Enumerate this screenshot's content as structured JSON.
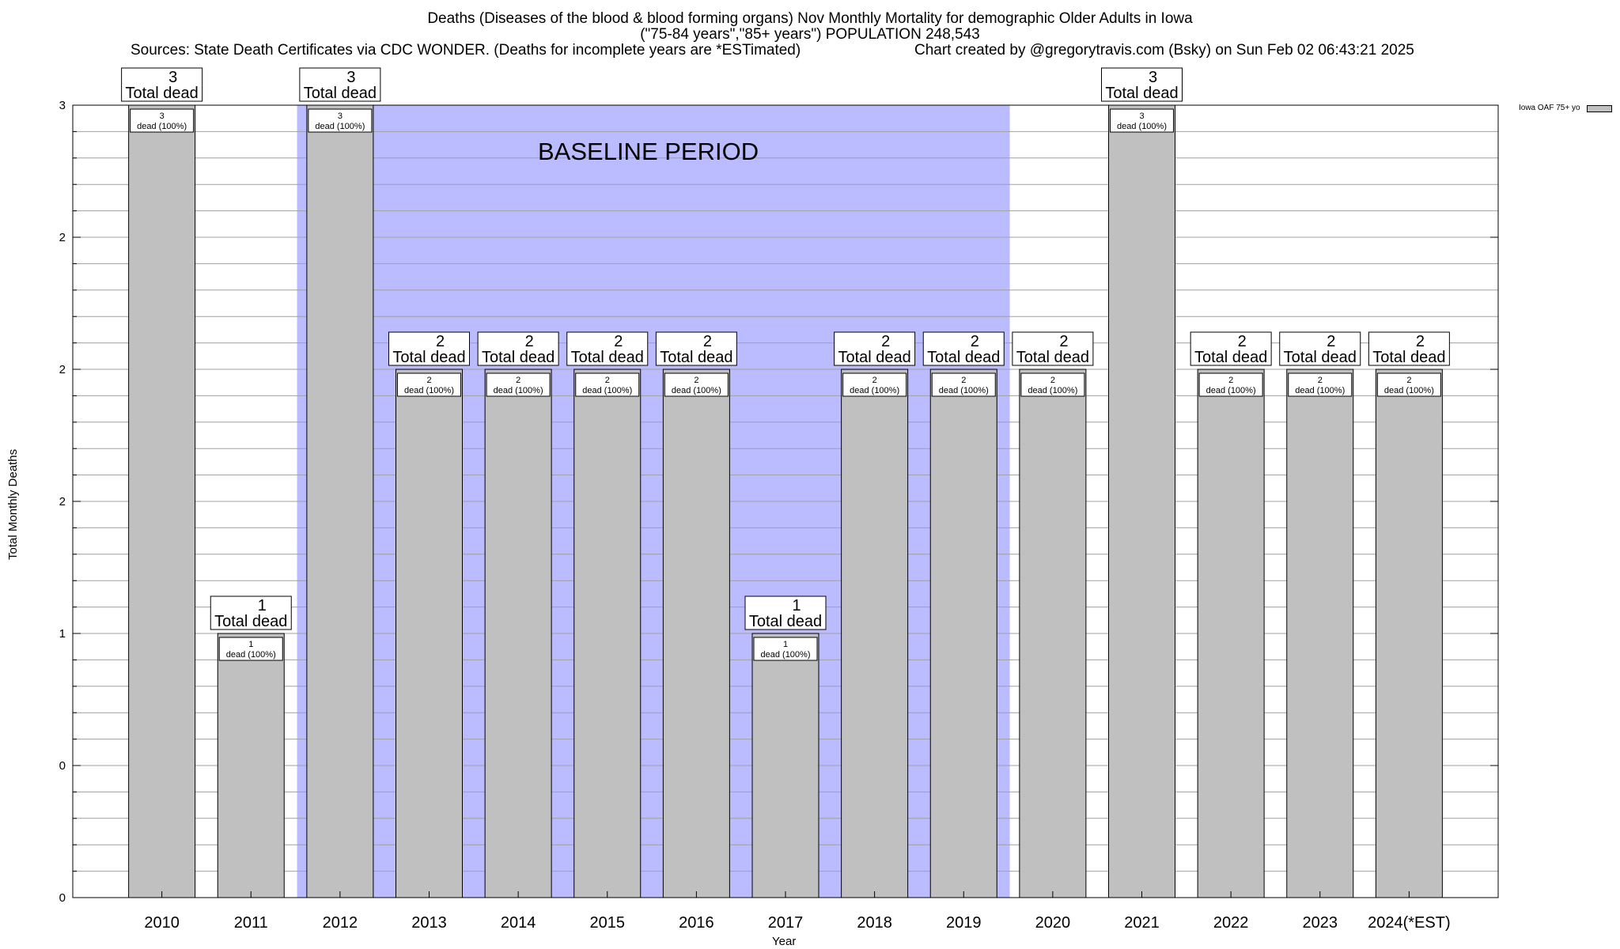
{
  "title": {
    "line1": "Deaths (Diseases of the blood & blood forming organs) Nov Monthly Mortality for demographic Older Adults in Iowa",
    "line2": "(\"75-84 years\",\"85+ years\") POPULATION 248,543",
    "sources": "Sources: State Death Certificates via CDC WONDER. (Deaths for incomplete years are *ESTimated)",
    "credit": "Chart created by @gregorytravis.com (Bsky) on Sun Feb 02 06:43:21 2025"
  },
  "annotation": "BASELINE PERIOD",
  "colors": {
    "bar_fill": "#c0c0c0",
    "baseline_fill": "#bbbbff",
    "grid": "#a0a0a0"
  },
  "chart_data": {
    "type": "bar",
    "title": "Deaths (Diseases of the blood & blood forming organs) Nov Monthly Mortality for demographic Older Adults in Iowa",
    "xlabel": "Year",
    "ylabel": "Total Monthly Deaths",
    "categories": [
      "2010",
      "2011",
      "2012",
      "2013",
      "2014",
      "2015",
      "2016",
      "2017",
      "2018",
      "2019",
      "2020",
      "2021",
      "2022",
      "2023",
      "2024(*EST)"
    ],
    "series": [
      {
        "name": "Iowa OAF 75+ yo",
        "values": [
          3,
          1,
          3,
          2,
          2,
          2,
          2,
          1,
          2,
          2,
          2,
          3,
          2,
          2,
          2
        ]
      }
    ],
    "ylim": [
      0,
      3
    ],
    "y_tick_values": [
      0,
      0.5,
      1,
      1.5,
      2,
      2.5,
      3
    ],
    "y_tick_labels": [
      "0",
      "0",
      "1",
      "2",
      "2",
      "2",
      "3"
    ],
    "minor_grid_step": 0.1,
    "grid": true,
    "legend_position": "right",
    "baseline_period": [
      "2012",
      "2019"
    ],
    "total_label_suffix": "Total dead",
    "inner_label_suffix": "dead (100%)"
  }
}
